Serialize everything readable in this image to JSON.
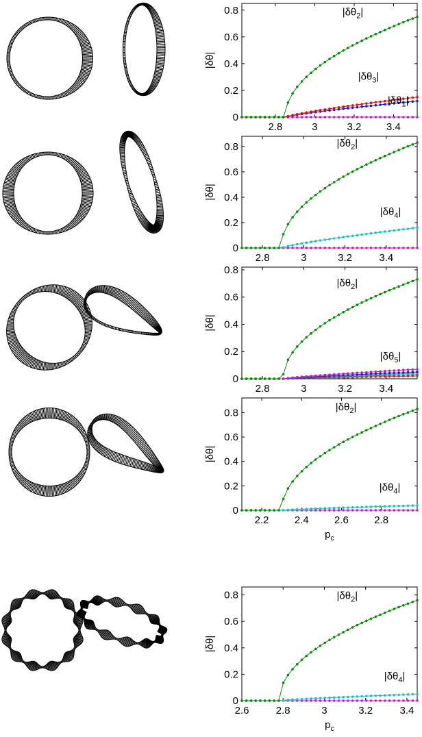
{
  "chart_data": [
    {
      "type": "line",
      "ylabel": "|δθ|",
      "xlabel": "",
      "xlim": [
        2.63,
        3.52
      ],
      "ylim": [
        0,
        0.85
      ],
      "xticks": [
        2.8,
        3,
        3.2,
        3.4
      ],
      "yticks": [
        0,
        0.2,
        0.4,
        0.6,
        0.8
      ],
      "x_start": 2.63,
      "x_end": 3.52,
      "x_onset": 2.85,
      "series": [
        {
          "name": "|δθ2|",
          "color": "#0a8a0a",
          "amp": 0.75
        },
        {
          "name": "|δθ3|",
          "color": "#e01010",
          "amp": 0.15
        },
        {
          "name": "|δθ1|",
          "color": "#1020d0",
          "amp": 0.12
        },
        {
          "name": "",
          "color": "#c020c0",
          "amp": 0.0
        }
      ],
      "annotations": [
        {
          "base": "|δθ",
          "sub": "2",
          "close": "|",
          "x": 3.14,
          "y": 0.76
        },
        {
          "base": "|δθ",
          "sub": "3",
          "close": "|",
          "x": 3.22,
          "y": 0.28
        },
        {
          "base": "|δθ",
          "sub": "1",
          "close": "|",
          "x": 3.37,
          "y": 0.1
        }
      ]
    },
    {
      "type": "line",
      "ylabel": "|δθ|",
      "xlabel": "",
      "xlim": [
        2.7,
        3.55
      ],
      "ylim": [
        0,
        0.88
      ],
      "xticks": [
        2.8,
        3,
        3.2,
        3.4
      ],
      "yticks": [
        0,
        0.2,
        0.4,
        0.6,
        0.8
      ],
      "x_start": 2.7,
      "x_end": 3.55,
      "x_onset": 2.89,
      "series": [
        {
          "name": "|δθ2|",
          "color": "#0a8a0a",
          "amp": 0.83
        },
        {
          "name": "|δθ4|",
          "color": "#20c0c0",
          "amp": 0.16
        },
        {
          "name": "",
          "color": "#c020c0",
          "amp": 0.0
        }
      ],
      "annotations": [
        {
          "base": "|δθ",
          "sub": "2",
          "close": "|",
          "x": 3.16,
          "y": 0.8
        },
        {
          "base": "|δθ",
          "sub": "4",
          "close": "|",
          "x": 3.37,
          "y": 0.26
        }
      ]
    },
    {
      "type": "line",
      "ylabel": "|δθ|",
      "xlabel": "",
      "xlim": [
        2.7,
        3.55
      ],
      "ylim": [
        0,
        0.82
      ],
      "xticks": [
        2.8,
        3,
        3.2,
        3.4
      ],
      "yticks": [
        0,
        0.2,
        0.4,
        0.6,
        0.8
      ],
      "x_start": 2.7,
      "x_end": 3.55,
      "x_onset": 2.9,
      "series": [
        {
          "name": "|δθ2|",
          "color": "#0a8a0a",
          "amp": 0.73
        },
        {
          "name": "|δθ5|",
          "color": "#c020c0",
          "amp": 0.07
        },
        {
          "name": "",
          "color": "#1020d0",
          "amp": 0.05
        },
        {
          "name": "",
          "color": "#20c0c0",
          "amp": 0.04
        },
        {
          "name": "",
          "color": "#e01010",
          "amp": 0.03
        },
        {
          "name": "",
          "color": "#666666",
          "amp": 0.02
        }
      ],
      "annotations": [
        {
          "base": "|δθ",
          "sub": "2",
          "close": "|",
          "x": 3.16,
          "y": 0.68
        },
        {
          "base": "|δθ",
          "sub": "5",
          "close": "|",
          "x": 3.37,
          "y": 0.14
        }
      ]
    },
    {
      "type": "line",
      "ylabel": "|δθ|",
      "xlabel": "p",
      "xlabel_sub": "c",
      "xlim": [
        2.1,
        2.98
      ],
      "ylim": [
        0,
        0.92
      ],
      "xticks": [
        2.2,
        2.4,
        2.6,
        2.8
      ],
      "yticks": [
        0,
        0.2,
        0.4,
        0.6,
        0.8
      ],
      "x_start": 2.1,
      "x_end": 2.98,
      "x_onset": 2.3,
      "series": [
        {
          "name": "|δθ2|",
          "color": "#0a8a0a",
          "amp": 0.83
        },
        {
          "name": "|δθ4|",
          "color": "#20c0c0",
          "amp": 0.04
        },
        {
          "name": "",
          "color": "#c020c0",
          "amp": 0.0
        }
      ],
      "annotations": [
        {
          "base": "|δθ",
          "sub": "2",
          "close": "|",
          "x": 2.57,
          "y": 0.82
        },
        {
          "base": "|δθ",
          "sub": "4",
          "close": "|",
          "x": 2.79,
          "y": 0.16
        }
      ]
    },
    {
      "type": "line",
      "ylabel": "|δθ|",
      "xlabel": "p",
      "xlabel_sub": "c",
      "xlim": [
        2.6,
        3.45
      ],
      "ylim": [
        0,
        0.86
      ],
      "xticks": [
        2.6,
        2.8,
        3,
        3.2,
        3.4
      ],
      "yticks": [
        0,
        0.2,
        0.4,
        0.6,
        0.8
      ],
      "x_start": 2.6,
      "x_end": 3.45,
      "x_onset": 2.78,
      "series": [
        {
          "name": "|δθ2|",
          "color": "#0a8a0a",
          "amp": 0.76
        },
        {
          "name": "|δθ4|",
          "color": "#20c0c0",
          "amp": 0.05
        },
        {
          "name": "",
          "color": "#c020c0",
          "amp": 0.0
        }
      ],
      "annotations": [
        {
          "base": "|δθ",
          "sub": "2",
          "close": "|",
          "x": 3.06,
          "y": 0.77
        },
        {
          "base": "|δθ",
          "sub": "4",
          "close": "|",
          "x": 3.29,
          "y": 0.16
        }
      ]
    }
  ]
}
